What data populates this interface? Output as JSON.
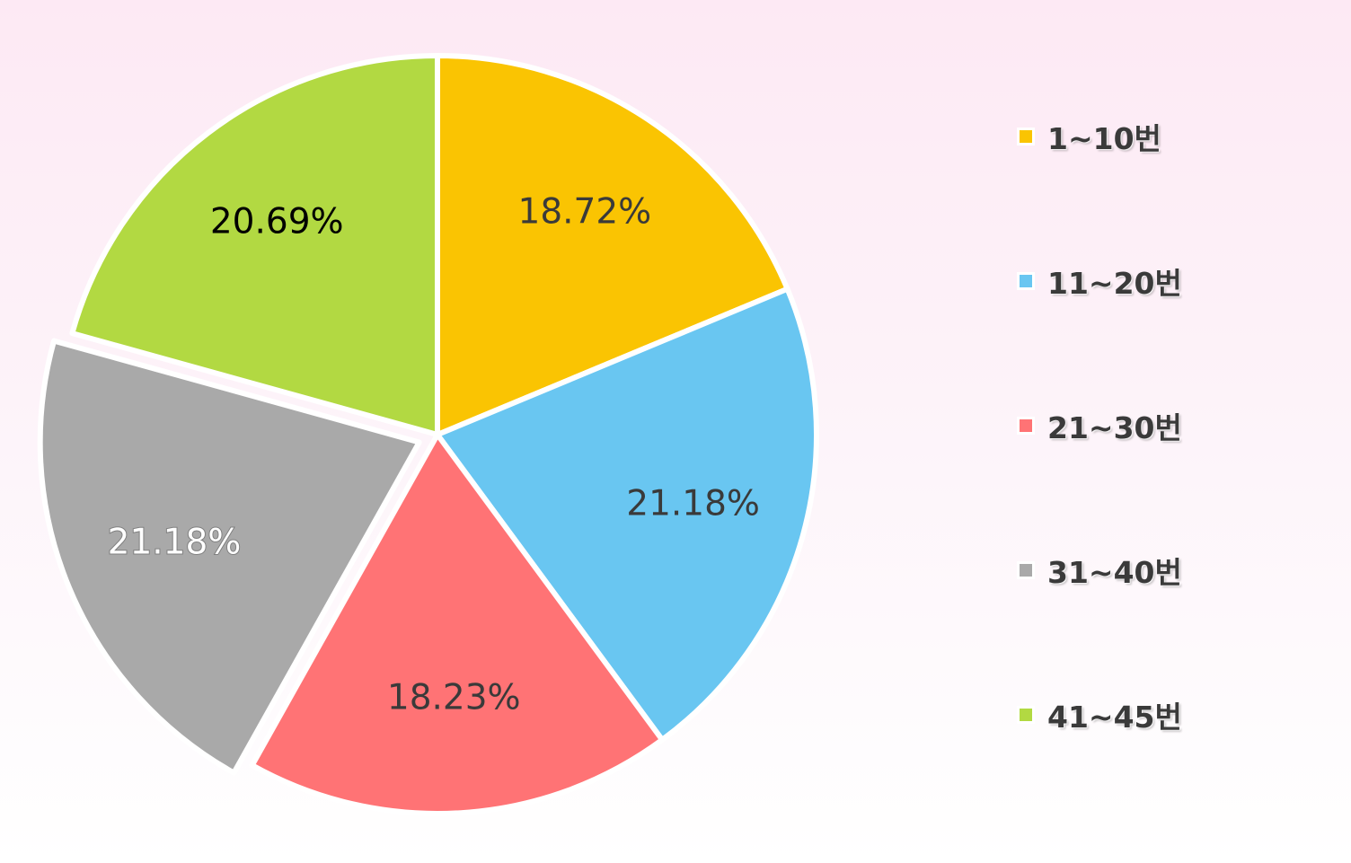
{
  "chart_data": {
    "type": "pie",
    "title": "",
    "categories": [
      "1~10번",
      "11~20번",
      "21~30번",
      "31~40번",
      "41~45번"
    ],
    "values": [
      18.72,
      21.18,
      18.23,
      21.18,
      20.69
    ],
    "value_labels": [
      "18.72%",
      "21.18%",
      "18.23%",
      "21.18%",
      "20.69%"
    ],
    "colors": [
      "#fac402",
      "#69c6f1",
      "#ff7375",
      "#a9a9a9",
      "#b2d942"
    ],
    "label_colors": [
      "#3a3a3a",
      "#3a3a3a",
      "#3a3a3a",
      "#ffffff",
      "#000000"
    ],
    "exploded_index": 3,
    "start_angle_deg": 0,
    "direction": "clockwise",
    "legend_position": "right"
  }
}
